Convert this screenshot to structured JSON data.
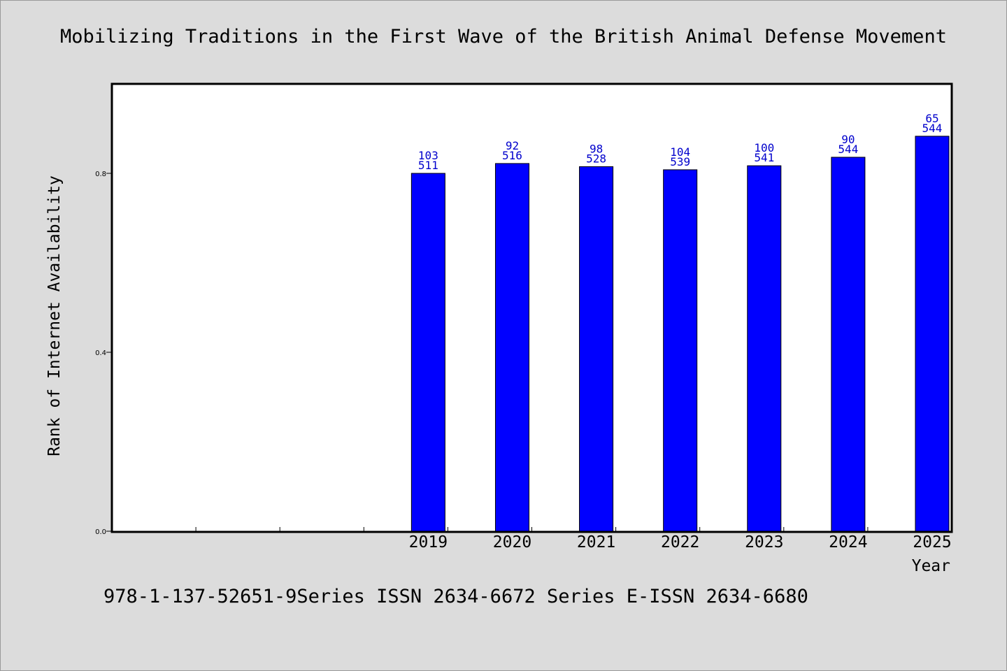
{
  "chart_data": {
    "type": "bar",
    "title": "Mobilizing Traditions in the First Wave of the British Animal Defense Movement",
    "xlabel": "Year",
    "ylabel": "Rank of Internet Availability",
    "categories": [
      "",
      "",
      "",
      "2019",
      "2020",
      "2021",
      "2022",
      "2023",
      "2024",
      "2025"
    ],
    "values": [
      null,
      null,
      null,
      0.8,
      0.822,
      0.815,
      0.808,
      0.817,
      0.836,
      0.883
    ],
    "data_labels": [
      null,
      null,
      null,
      [
        "103",
        "511"
      ],
      [
        "92",
        "516"
      ],
      [
        "98",
        "528"
      ],
      [
        "104",
        "539"
      ],
      [
        "100",
        "541"
      ],
      [
        "90",
        "544"
      ],
      [
        "65",
        "544"
      ]
    ],
    "ylim": [
      0,
      1.0
    ],
    "yticks": [
      0.0,
      0.4,
      0.8
    ],
    "ytick_labels": [
      "0.0",
      "0.4",
      "0.8"
    ],
    "grid": false,
    "bar_color": "#0000ff",
    "label_color": "#0000cc",
    "background": "#dcdcdc",
    "plot_background": "#ffffff"
  },
  "footer": "978-1-137-52651-9Series ISSN 2634-6672 Series E-ISSN 2634-6680"
}
